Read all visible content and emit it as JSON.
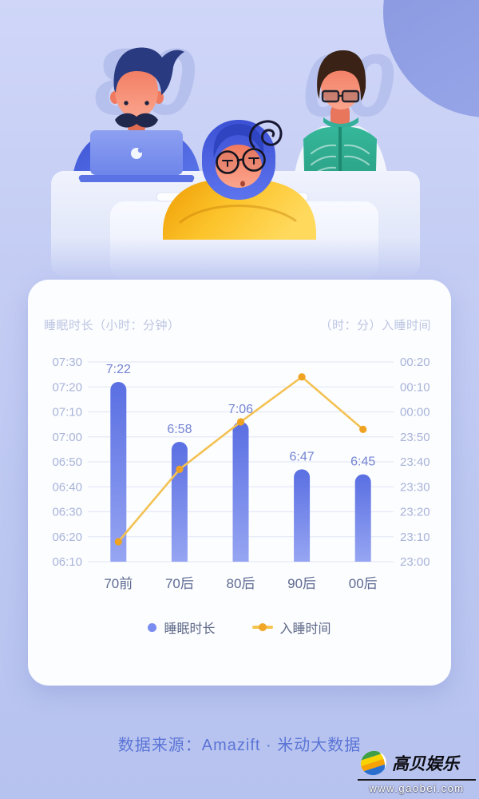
{
  "illustration": {
    "ghost_left": "80",
    "ghost_right": "00",
    "figures": [
      "man-typing-on-laptop",
      "person-asleep-on-desk",
      "man-reading-book"
    ]
  },
  "chart_data": {
    "type": "bar",
    "combo_overlay": "line",
    "title": "",
    "categories": [
      "70前",
      "70后",
      "80后",
      "90后",
      "00后"
    ],
    "series": [
      {
        "name": "睡眠时长",
        "type": "bar",
        "axis": "left",
        "labels": [
          "7:22",
          "6:58",
          "7:06",
          "6:47",
          "6:45"
        ],
        "minutes": [
          442,
          418,
          426,
          407,
          405
        ]
      },
      {
        "name": "入睡时间",
        "type": "line",
        "axis": "right",
        "estimated_labels": [
          "23:08",
          "23:37",
          "23:56",
          "00:14",
          "23:53"
        ],
        "minutes_after_2300": [
          8,
          37,
          56,
          74,
          53
        ]
      }
    ],
    "left_axis": {
      "title": "睡眠时长（小时：分钟）",
      "ticks": [
        "07:30",
        "07:20",
        "07:10",
        "07:00",
        "06:50",
        "06:40",
        "06:30",
        "06:20",
        "06:10"
      ],
      "range_minutes": [
        370,
        450
      ]
    },
    "right_axis": {
      "title": "（时：分）入睡时间",
      "ticks": [
        "00:20",
        "00:10",
        "00:00",
        "23:50",
        "23:40",
        "23:30",
        "23:20",
        "23:10",
        "23:00"
      ],
      "range_minutes_after_2300": [
        0,
        80
      ]
    },
    "grid": true,
    "legend_position": "bottom"
  },
  "colors": {
    "bar_top": "#5a6fe2",
    "bar_bottom": "#96a5f2",
    "line": "#f3c253",
    "point": "#f0a322",
    "gridline": "#e6e9f7",
    "tick_label": "#a8b3d8",
    "bar_value_label": "#7484d2",
    "category_label": "#5e6a92",
    "axis_title": "#bdc6e2",
    "footer_text": "#5b74d6",
    "card_bg": "#fcfdff",
    "page_bg": "#c3ccf3"
  },
  "footer": {
    "source_text": "数据来源：Amazift · 米动大数据"
  },
  "watermark": {
    "brand": "高贝娱乐",
    "url": "www.gaobei.com"
  }
}
